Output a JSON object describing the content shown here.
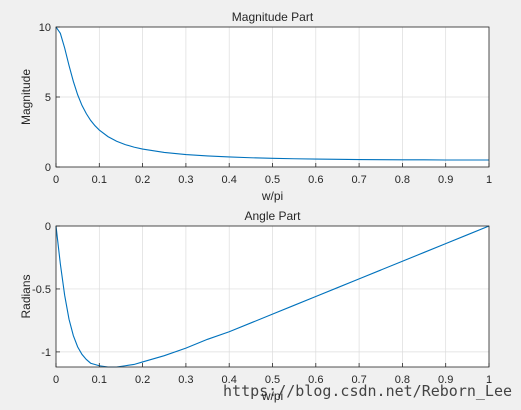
{
  "figure": {
    "background": "#f0f0f0",
    "axes_background": "#ffffff",
    "grid_color": "#dcdcdc",
    "line_color": "#0072bd",
    "watermark": "https://blog.csdn.net/Reborn_Lee"
  },
  "chart_data": [
    {
      "type": "line",
      "title": "Magnitude Part",
      "xlabel": "w/pi",
      "ylabel": "Magnitude",
      "xlim": [
        0,
        1
      ],
      "ylim": [
        0,
        10
      ],
      "xticks": [
        "0",
        "0.1",
        "0.2",
        "0.3",
        "0.4",
        "0.5",
        "0.6",
        "0.7",
        "0.8",
        "0.9",
        "1"
      ],
      "yticks": [
        "0",
        "5",
        "10"
      ],
      "grid": true,
      "legend": "none",
      "series": [
        {
          "x": [
            0,
            0.01,
            0.02,
            0.03,
            0.04,
            0.05,
            0.06,
            0.07,
            0.08,
            0.09,
            0.1,
            0.12,
            0.14,
            0.16,
            0.18,
            0.2,
            0.25,
            0.3,
            0.35,
            0.4,
            0.45,
            0.5,
            0.55,
            0.6,
            0.65,
            0.7,
            0.75,
            0.8,
            0.85,
            0.9,
            0.95,
            1.0
          ],
          "y": [
            10.0,
            9.55,
            8.5,
            7.26,
            6.12,
            5.16,
            4.4,
            3.81,
            3.33,
            2.95,
            2.64,
            2.17,
            1.84,
            1.6,
            1.42,
            1.28,
            1.04,
            0.89,
            0.79,
            0.72,
            0.66,
            0.62,
            0.59,
            0.57,
            0.55,
            0.53,
            0.52,
            0.51,
            0.51,
            0.5,
            0.5,
            0.5
          ]
        }
      ]
    },
    {
      "type": "line",
      "title": "Angle Part",
      "xlabel": "w/pi",
      "ylabel": "Radians",
      "xlim": [
        0,
        1
      ],
      "ylim": [
        -1.12,
        0
      ],
      "xticks": [
        "0",
        "0.1",
        "0.2",
        "0.3",
        "0.4",
        "0.5",
        "0.6",
        "0.7",
        "0.8",
        "0.9",
        "1"
      ],
      "yticks": [
        "0",
        "-0.5",
        "-1"
      ],
      "ytick_values": [
        0,
        -0.5,
        -1
      ],
      "grid": true,
      "legend": "none",
      "series": [
        {
          "x": [
            0,
            0.01,
            0.02,
            0.03,
            0.04,
            0.05,
            0.06,
            0.07,
            0.08,
            0.09,
            0.1,
            0.12,
            0.14,
            0.16,
            0.18,
            0.2,
            0.25,
            0.3,
            0.35,
            0.4,
            0.45,
            0.5,
            0.55,
            0.6,
            0.65,
            0.7,
            0.75,
            0.8,
            0.85,
            0.9,
            0.95,
            1.0
          ],
          "y": [
            0,
            -0.3,
            -0.55,
            -0.74,
            -0.87,
            -0.96,
            -1.02,
            -1.06,
            -1.09,
            -1.1,
            -1.11,
            -1.12,
            -1.12,
            -1.11,
            -1.1,
            -1.08,
            -1.03,
            -0.97,
            -0.9,
            -0.84,
            -0.77,
            -0.7,
            -0.63,
            -0.56,
            -0.49,
            -0.42,
            -0.35,
            -0.28,
            -0.21,
            -0.14,
            -0.07,
            0
          ]
        }
      ]
    }
  ]
}
